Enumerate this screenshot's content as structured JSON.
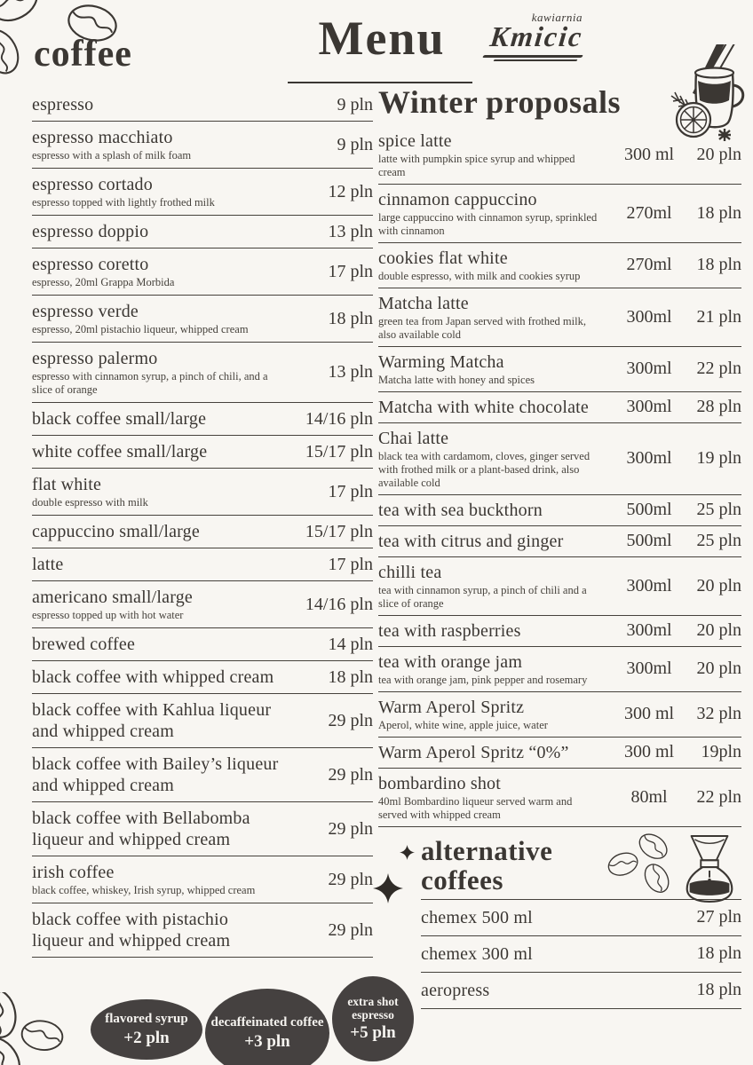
{
  "meta": {
    "background_color": "#f8f6f2",
    "ink_color": "#3b3733",
    "badge_color": "#454140",
    "badge_text_color": "#f6f4f0"
  },
  "header": {
    "title": "Menu",
    "logo_small": "kawiarnia",
    "logo_name": "Kmicic"
  },
  "icons": {
    "top_left": "coffee-beans-icon",
    "bottom_left": "coffee-beans-icon",
    "header_right": "mulled-wine-icon",
    "alt_left": "sparkles-icon",
    "alt_right_beans": "coffee-beans-icon",
    "alt_right_brewer": "chemex-brewer-icon"
  },
  "coffee_section": {
    "title": "coffee",
    "items": [
      {
        "name": "espresso",
        "price": "9 pln"
      },
      {
        "name": "espresso macchiato",
        "desc": "espresso with a splash of milk foam",
        "price": "9 pln"
      },
      {
        "name": "espresso cortado",
        "desc": "espresso topped with lightly frothed milk",
        "price": "12 pln"
      },
      {
        "name": "espresso doppio",
        "price": "13 pln"
      },
      {
        "name": "espresso coretto",
        "desc": "espresso, 20ml Grappa Morbida",
        "price": "17 pln"
      },
      {
        "name": "espresso verde",
        "desc": "espresso, 20ml pistachio liqueur, whipped cream",
        "price": "18 pln"
      },
      {
        "name": "espresso palermo",
        "desc": "espresso with cinnamon syrup, a pinch of chili, and a slice of orange",
        "price": "13 pln"
      },
      {
        "name": "black coffee small/large",
        "price": "14/16 pln"
      },
      {
        "name": "white coffee small/large",
        "price": "15/17 pln"
      },
      {
        "name": "flat white",
        "desc": "double espresso with milk",
        "price": "17 pln"
      },
      {
        "name": "cappuccino small/large",
        "price": "15/17 pln"
      },
      {
        "name": "latte",
        "price": "17 pln"
      },
      {
        "name": "americano small/large",
        "desc": "espresso topped up with hot water",
        "price": "14/16 pln"
      },
      {
        "name": "brewed coffee",
        "price": "14 pln"
      },
      {
        "name": "black coffee with whipped cream",
        "price": "18 pln"
      },
      {
        "name": "black coffee with Kahlua liqueur and whipped cream",
        "price": "29 pln"
      },
      {
        "name": "black coffee with Bailey’s liqueur and whipped cream",
        "price": "29 pln"
      },
      {
        "name": "black coffee with Bellabomba liqueur and whipped cream",
        "price": "29 pln"
      },
      {
        "name": "irish coffee",
        "desc": "black coffee, whiskey, Irish syrup, whipped cream",
        "price": "29 pln"
      },
      {
        "name": "black coffee with pistachio liqueur and whipped cream",
        "price": "29 pln"
      }
    ]
  },
  "winter_section": {
    "title": "Winter proposals",
    "items": [
      {
        "name": "spice latte",
        "desc": "latte with pumpkin spice syrup and whipped cream",
        "volume": "300 ml",
        "price": "20 pln"
      },
      {
        "name": "cinnamon cappuccino",
        "desc": "large cappuccino with cinnamon syrup, sprinkled with cinnamon",
        "volume": "270ml",
        "price": "18 pln"
      },
      {
        "name": "cookies flat white",
        "desc": "double espresso, with milk and cookies syrup",
        "volume": "270ml",
        "price": "18 pln"
      },
      {
        "name": "Matcha latte",
        "desc": "green tea from Japan served with frothed milk, also available cold",
        "volume": "300ml",
        "price": "21 pln"
      },
      {
        "name": "Warming Matcha",
        "desc": "Matcha latte with honey and spices",
        "volume": "300ml",
        "price": "22 pln"
      },
      {
        "name": "Matcha with white chocolate",
        "volume": "300ml",
        "price": "28 pln"
      },
      {
        "name": "Chai latte",
        "desc": "black tea with cardamom, cloves, ginger served with frothed milk or a plant-based drink, also available cold",
        "volume": "300ml",
        "price": "19 pln"
      },
      {
        "name": "tea with sea buckthorn",
        "volume": "500ml",
        "price": "25 pln"
      },
      {
        "name": "tea with citrus and ginger",
        "volume": "500ml",
        "price": "25 pln"
      },
      {
        "name": "chilli tea",
        "desc": "tea with cinnamon syrup, a pinch of chili and a slice of orange",
        "volume": "300ml",
        "price": "20 pln"
      },
      {
        "name": "tea with raspberries",
        "volume": "300ml",
        "price": "20 pln"
      },
      {
        "name": "tea with orange jam",
        "desc": "tea with orange jam, pink pepper and rosemary",
        "volume": "300ml",
        "price": "20 pln"
      },
      {
        "name": "Warm Aperol Spritz",
        "desc": "Aperol, white wine, apple juice, water",
        "volume": "300 ml",
        "price": "32 pln"
      },
      {
        "name": "Warm Aperol Spritz “0%”",
        "volume": "300 ml",
        "price": "19pln"
      },
      {
        "name": "bombardino shot",
        "desc": "40ml Bombardino liqueur served warm and served with whipped cream",
        "volume": "80ml",
        "price": "22 pln"
      }
    ]
  },
  "alternative_section": {
    "title": "alternative coffees",
    "items": [
      {
        "name": "chemex 500 ml",
        "price": "27 pln"
      },
      {
        "name": "chemex 300 ml",
        "price": "18 pln"
      },
      {
        "name": "aeropress",
        "price": "18 pln"
      }
    ]
  },
  "badges": [
    {
      "name": "flavored-syrup-badge",
      "label": "flavored syrup",
      "price": "+2 pln"
    },
    {
      "name": "decaffeinated-coffee-badge",
      "label": "decaffeinated coffee",
      "price": "+3 pln"
    },
    {
      "name": "extra-shot-badge",
      "label": "extra shot espresso",
      "price": "+5 pln"
    }
  ]
}
